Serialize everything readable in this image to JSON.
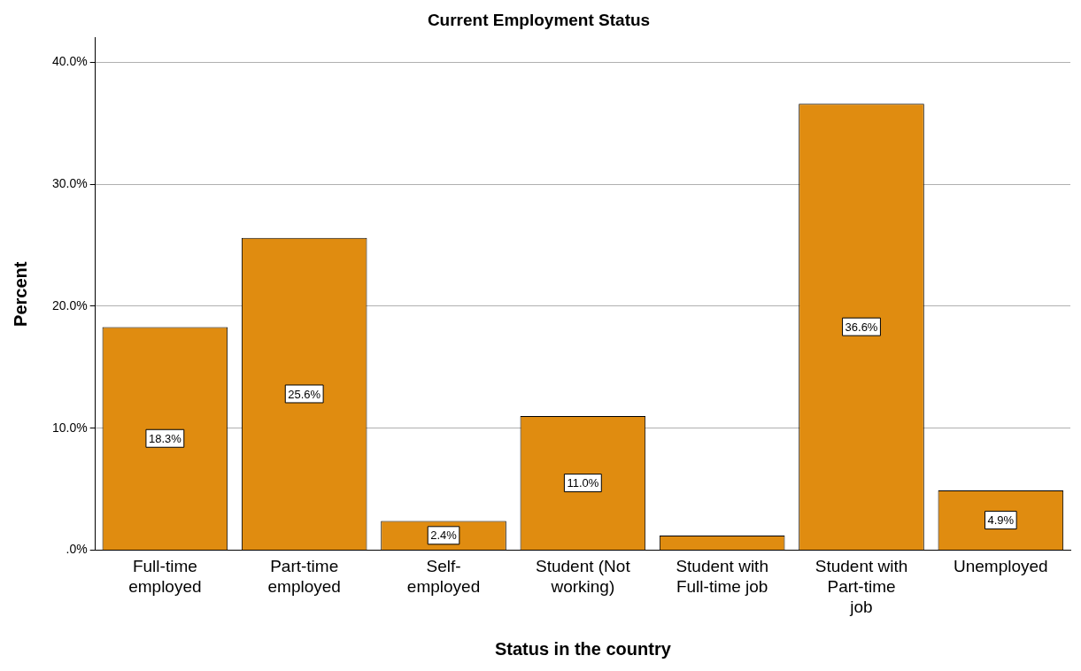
{
  "chart_data": {
    "type": "bar",
    "title": "Current Employment Status",
    "xlabel": "Status in the country",
    "ylabel": "Percent",
    "categories": [
      "Full-time\nemployed",
      "Part-time\nemployed",
      "Self-\nemployed",
      "Student (Not\nworking)",
      "Student with\nFull-time job",
      "Student with\nPart-time\njob",
      "Unemployed"
    ],
    "values": [
      18.3,
      25.6,
      2.4,
      11.0,
      1.2,
      36.6,
      4.9
    ],
    "value_labels": [
      "18.3%",
      "25.6%",
      "2.4%",
      "11.0%",
      null,
      "36.6%",
      "4.9%"
    ],
    "color": "#e08c10",
    "ylim": [
      0,
      42
    ],
    "yticks": [
      {
        "value": 0,
        "label": ".0%"
      },
      {
        "value": 10,
        "label": "10.0%"
      },
      {
        "value": 20,
        "label": "20.0%"
      },
      {
        "value": 30,
        "label": "30.0%"
      },
      {
        "value": 40,
        "label": "40.0%"
      }
    ],
    "grid": "y"
  }
}
